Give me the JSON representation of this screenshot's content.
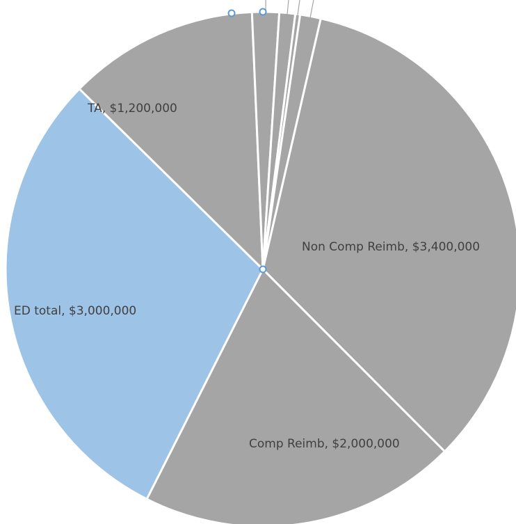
{
  "chart_data": {
    "type": "pie",
    "slices": [
      {
        "name": "Non Comp  Reimb",
        "value": 3400000,
        "label": "Non Comp  Reimb, $3,400,000",
        "color": "#a5a5a5"
      },
      {
        "name": "Comp Reimb",
        "value": 2000000,
        "label": "Comp Reimb, $2,000,000",
        "color": "#a5a5a5"
      },
      {
        "name": "ED total",
        "value": 3000000,
        "label": "ED total, $3,000,000",
        "color": "#9dc3e6"
      },
      {
        "name": "TA",
        "value": 1200000,
        "label": "TA, $1,200,000",
        "color": "#a5a5a5"
      },
      {
        "name": "",
        "value": 170000,
        "label": "",
        "color": "#a5a5a5"
      },
      {
        "name": "",
        "value": 100000,
        "label": "",
        "color": "#a5a5a5"
      },
      {
        "name": "",
        "value": 30000,
        "label": "",
        "color": "#a5a5a5"
      },
      {
        "name": "",
        "value": 130000,
        "label": "",
        "color": "#a5a5a5"
      }
    ],
    "start_angle_deg": 13,
    "selected_slice": "ED total",
    "colors": {
      "default": "#a5a5a5",
      "highlight": "#9dc3e6",
      "separator": "#ffffff",
      "handle": "#5b9bd5"
    }
  }
}
